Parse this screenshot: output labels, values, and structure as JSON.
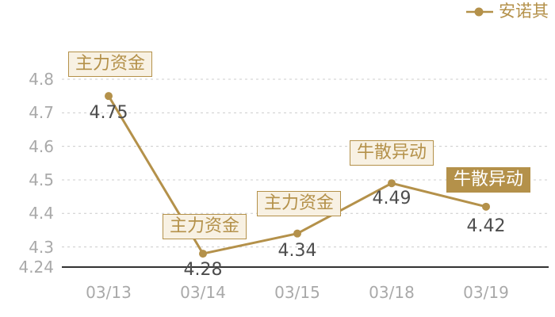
{
  "legend": {
    "label": "安诺其"
  },
  "colors": {
    "series": "#b4914a",
    "tag_background": "#f8f1e3",
    "tag_active_text": "#ffffff",
    "axis_label": "#a9a9a9",
    "value_label": "#4d4d4d",
    "grid_line": "#cccccc",
    "axis_line": "#333333"
  },
  "chart_data": {
    "type": "line",
    "title": "",
    "xlabel": "",
    "ylabel": "",
    "categories": [
      "03/13",
      "03/14",
      "03/15",
      "03/18",
      "03/19"
    ],
    "series": [
      {
        "name": "安诺其",
        "values": [
          4.75,
          4.28,
          4.34,
          4.49,
          4.42
        ]
      }
    ],
    "value_labels": [
      "4.75",
      "4.28",
      "4.34",
      "4.49",
      "4.42"
    ],
    "y_ticks": [
      "4.8",
      "4.7",
      "4.6",
      "4.5",
      "4.4",
      "4.3",
      "4.24"
    ],
    "ylim": [
      4.24,
      4.8
    ],
    "grid": "horizontal-dashed",
    "legend_position": "top-right",
    "value_label_dy": [
      22,
      21,
      22,
      20,
      25
    ],
    "annotations": [
      {
        "label": "主力资金",
        "point_index": 0,
        "style": "outline",
        "dx": 2,
        "gap": 24
      },
      {
        "label": "主力资金",
        "point_index": 1,
        "style": "outline",
        "dx": 2,
        "gap": 18
      },
      {
        "label": "主力资金",
        "point_index": 2,
        "style": "outline",
        "dx": 2,
        "gap": 22
      },
      {
        "label": "牛散异动",
        "point_index": 3,
        "style": "outline",
        "dx": 0,
        "gap": 22
      },
      {
        "label": "牛散异动",
        "point_index": 4,
        "style": "solid",
        "dx": 3,
        "gap": 18
      }
    ]
  }
}
